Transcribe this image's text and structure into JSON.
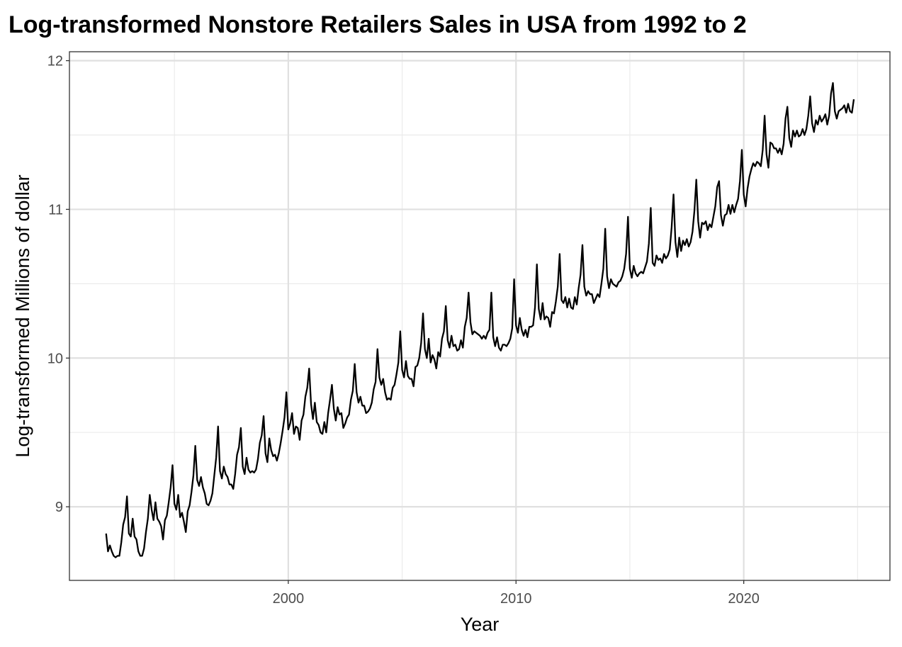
{
  "chart_data": {
    "type": "line",
    "title": "Log-transformed Nonstore Retailers Sales in USA from 1992 to 2",
    "xlabel": "Year",
    "ylabel": "Log-transformed Millions of dollar",
    "xlim": [
      1990.39,
      2026.42
    ],
    "ylim": [
      8.505,
      12.06
    ],
    "x_ticks": [
      2000,
      2010,
      2020
    ],
    "x_minor_ticks": [
      1995,
      2005,
      2015,
      2025
    ],
    "y_ticks": [
      9,
      10,
      11,
      12
    ],
    "y_minor_ticks": [
      9.5,
      10.5,
      11.5
    ],
    "x_tick_labels": [
      "2000",
      "2010",
      "2020"
    ],
    "y_tick_labels": [
      "9",
      "10",
      "11",
      "12"
    ],
    "grid": true,
    "legend": "none",
    "line_color": "#000000",
    "series": [
      {
        "frequency": "monthly",
        "x": [
          "1992-01",
          "1992-02",
          "1992-03",
          "1992-04",
          "1992-05",
          "1992-06",
          "1992-07",
          "1992-08",
          "1992-09",
          "1992-10",
          "1992-11",
          "1992-12",
          "1993-01",
          "1993-02",
          "1993-03",
          "1993-04",
          "1993-05",
          "1993-06",
          "1993-07",
          "1993-08",
          "1993-09",
          "1993-10",
          "1993-11",
          "1993-12",
          "1994-01",
          "1994-02",
          "1994-03",
          "1994-04",
          "1994-05",
          "1994-06",
          "1994-07",
          "1994-08",
          "1994-09",
          "1994-10",
          "1994-11",
          "1994-12",
          "1995-01",
          "1995-02",
          "1995-03",
          "1995-04",
          "1995-05",
          "1995-06",
          "1995-07",
          "1995-08",
          "1995-09",
          "1995-10",
          "1995-11",
          "1995-12",
          "1996-01",
          "1996-02",
          "1996-03",
          "1996-04",
          "1996-05",
          "1996-06",
          "1996-07",
          "1996-08",
          "1996-09",
          "1996-10",
          "1996-11",
          "1996-12",
          "1997-01",
          "1997-02",
          "1997-03",
          "1997-04",
          "1997-05",
          "1997-06",
          "1997-07",
          "1997-08",
          "1997-09",
          "1997-10",
          "1997-11",
          "1997-12",
          "1998-01",
          "1998-02",
          "1998-03",
          "1998-04",
          "1998-05",
          "1998-06",
          "1998-07",
          "1998-08",
          "1998-09",
          "1998-10",
          "1998-11",
          "1998-12",
          "1999-01",
          "1999-02",
          "1999-03",
          "1999-04",
          "1999-05",
          "1999-06",
          "1999-07",
          "1999-08",
          "1999-09",
          "1999-10",
          "1999-11",
          "1999-12",
          "2000-01",
          "2000-02",
          "2000-03",
          "2000-04",
          "2000-05",
          "2000-06",
          "2000-07",
          "2000-08",
          "2000-09",
          "2000-10",
          "2000-11",
          "2000-12",
          "2001-01",
          "2001-02",
          "2001-03",
          "2001-04",
          "2001-05",
          "2001-06",
          "2001-07",
          "2001-08",
          "2001-09",
          "2001-10",
          "2001-11",
          "2001-12",
          "2002-01",
          "2002-02",
          "2002-03",
          "2002-04",
          "2002-05",
          "2002-06",
          "2002-07",
          "2002-08",
          "2002-09",
          "2002-10",
          "2002-11",
          "2002-12",
          "2003-01",
          "2003-02",
          "2003-03",
          "2003-04",
          "2003-05",
          "2003-06",
          "2003-07",
          "2003-08",
          "2003-09",
          "2003-10",
          "2003-11",
          "2003-12",
          "2004-01",
          "2004-02",
          "2004-03",
          "2004-04",
          "2004-05",
          "2004-06",
          "2004-07",
          "2004-08",
          "2004-09",
          "2004-10",
          "2004-11",
          "2004-12",
          "2005-01",
          "2005-02",
          "2005-03",
          "2005-04",
          "2005-05",
          "2005-06",
          "2005-07",
          "2005-08",
          "2005-09",
          "2005-10",
          "2005-11",
          "2005-12",
          "2006-01",
          "2006-02",
          "2006-03",
          "2006-04",
          "2006-05",
          "2006-06",
          "2006-07",
          "2006-08",
          "2006-09",
          "2006-10",
          "2006-11",
          "2006-12",
          "2007-01",
          "2007-02",
          "2007-03",
          "2007-04",
          "2007-05",
          "2007-06",
          "2007-07",
          "2007-08",
          "2007-09",
          "2007-10",
          "2007-11",
          "2007-12",
          "2008-01",
          "2008-02",
          "2008-03",
          "2008-04",
          "2008-05",
          "2008-06",
          "2008-07",
          "2008-08",
          "2008-09",
          "2008-10",
          "2008-11",
          "2008-12",
          "2009-01",
          "2009-02",
          "2009-03",
          "2009-04",
          "2009-05",
          "2009-06",
          "2009-07",
          "2009-08",
          "2009-09",
          "2009-10",
          "2009-11",
          "2009-12",
          "2010-01",
          "2010-02",
          "2010-03",
          "2010-04",
          "2010-05",
          "2010-06",
          "2010-07",
          "2010-08",
          "2010-09",
          "2010-10",
          "2010-11",
          "2010-12",
          "2011-01",
          "2011-02",
          "2011-03",
          "2011-04",
          "2011-05",
          "2011-06",
          "2011-07",
          "2011-08",
          "2011-09",
          "2011-10",
          "2011-11",
          "2011-12",
          "2012-01",
          "2012-02",
          "2012-03",
          "2012-04",
          "2012-05",
          "2012-06",
          "2012-07",
          "2012-08",
          "2012-09",
          "2012-10",
          "2012-11",
          "2012-12",
          "2013-01",
          "2013-02",
          "2013-03",
          "2013-04",
          "2013-05",
          "2013-06",
          "2013-07",
          "2013-08",
          "2013-09",
          "2013-10",
          "2013-11",
          "2013-12",
          "2014-01",
          "2014-02",
          "2014-03",
          "2014-04",
          "2014-05",
          "2014-06",
          "2014-07",
          "2014-08",
          "2014-09",
          "2014-10",
          "2014-11",
          "2014-12",
          "2015-01",
          "2015-02",
          "2015-03",
          "2015-04",
          "2015-05",
          "2015-06",
          "2015-07",
          "2015-08",
          "2015-09",
          "2015-10",
          "2015-11",
          "2015-12",
          "2016-01",
          "2016-02",
          "2016-03",
          "2016-04",
          "2016-05",
          "2016-06",
          "2016-07",
          "2016-08",
          "2016-09",
          "2016-10",
          "2016-11",
          "2016-12",
          "2017-01",
          "2017-02",
          "2017-03",
          "2017-04",
          "2017-05",
          "2017-06",
          "2017-07",
          "2017-08",
          "2017-09",
          "2017-10",
          "2017-11",
          "2017-12",
          "2018-01",
          "2018-02",
          "2018-03",
          "2018-04",
          "2018-05",
          "2018-06",
          "2018-07",
          "2018-08",
          "2018-09",
          "2018-10",
          "2018-11",
          "2018-12",
          "2019-01",
          "2019-02",
          "2019-03",
          "2019-04",
          "2019-05",
          "2019-06",
          "2019-07",
          "2019-08",
          "2019-09",
          "2019-10",
          "2019-11",
          "2019-12",
          "2020-01",
          "2020-02",
          "2020-03",
          "2020-04",
          "2020-05",
          "2020-06",
          "2020-07",
          "2020-08",
          "2020-09",
          "2020-10",
          "2020-11",
          "2020-12",
          "2021-01",
          "2021-02",
          "2021-03",
          "2021-04",
          "2021-05",
          "2021-06",
          "2021-07",
          "2021-08",
          "2021-09",
          "2021-10",
          "2021-11",
          "2021-12",
          "2022-01",
          "2022-02",
          "2022-03",
          "2022-04",
          "2022-05",
          "2022-06",
          "2022-07",
          "2022-08",
          "2022-09",
          "2022-10",
          "2022-11",
          "2022-12",
          "2023-01",
          "2023-02",
          "2023-03",
          "2023-04",
          "2023-05",
          "2023-06",
          "2023-07",
          "2023-08",
          "2023-09",
          "2023-10",
          "2023-11",
          "2023-12",
          "2024-01",
          "2024-02",
          "2024-03",
          "2024-04",
          "2024-05",
          "2024-06",
          "2024-07",
          "2024-08",
          "2024-09",
          "2024-10",
          "2024-11"
        ],
        "values": [
          8.82,
          8.7,
          8.74,
          8.7,
          8.67,
          8.66,
          8.67,
          8.67,
          8.76,
          8.88,
          8.93,
          9.07,
          8.82,
          8.8,
          8.92,
          8.8,
          8.78,
          8.7,
          8.67,
          8.67,
          8.72,
          8.83,
          8.92,
          9.08,
          8.98,
          8.91,
          9.03,
          8.92,
          8.9,
          8.87,
          8.78,
          8.91,
          8.94,
          9.03,
          9.13,
          9.28,
          9.02,
          8.98,
          9.08,
          8.93,
          8.96,
          8.9,
          8.83,
          8.97,
          9.01,
          9.1,
          9.21,
          9.41,
          9.18,
          9.14,
          9.2,
          9.13,
          9.09,
          9.02,
          9.01,
          9.04,
          9.09,
          9.21,
          9.33,
          9.54,
          9.24,
          9.19,
          9.27,
          9.22,
          9.2,
          9.15,
          9.15,
          9.12,
          9.22,
          9.35,
          9.4,
          9.53,
          9.27,
          9.22,
          9.33,
          9.25,
          9.23,
          9.24,
          9.23,
          9.25,
          9.32,
          9.43,
          9.48,
          9.61,
          9.36,
          9.3,
          9.46,
          9.38,
          9.34,
          9.35,
          9.31,
          9.36,
          9.43,
          9.51,
          9.6,
          9.77,
          9.52,
          9.56,
          9.63,
          9.49,
          9.54,
          9.53,
          9.45,
          9.58,
          9.62,
          9.74,
          9.8,
          9.93,
          9.69,
          9.59,
          9.7,
          9.57,
          9.55,
          9.5,
          9.49,
          9.57,
          9.5,
          9.63,
          9.72,
          9.82,
          9.66,
          9.58,
          9.67,
          9.62,
          9.63,
          9.53,
          9.56,
          9.6,
          9.62,
          9.72,
          9.78,
          9.96,
          9.77,
          9.7,
          9.74,
          9.68,
          9.68,
          9.63,
          9.64,
          9.66,
          9.7,
          9.79,
          9.84,
          10.06,
          9.87,
          9.82,
          9.86,
          9.77,
          9.72,
          9.73,
          9.72,
          9.8,
          9.82,
          9.89,
          9.97,
          10.18,
          9.92,
          9.87,
          9.98,
          9.88,
          9.86,
          9.86,
          9.81,
          9.94,
          9.95,
          10.0,
          10.1,
          10.3,
          10.06,
          10.0,
          10.13,
          9.97,
          10.02,
          9.99,
          9.93,
          10.04,
          10.01,
          10.13,
          10.18,
          10.35,
          10.12,
          10.07,
          10.15,
          10.08,
          10.09,
          10.05,
          10.06,
          10.12,
          10.07,
          10.21,
          10.27,
          10.44,
          10.24,
          10.16,
          10.18,
          10.17,
          10.16,
          10.15,
          10.13,
          10.15,
          10.13,
          10.17,
          10.19,
          10.44,
          10.14,
          10.08,
          10.14,
          10.07,
          10.05,
          10.09,
          10.09,
          10.08,
          10.1,
          10.13,
          10.2,
          10.53,
          10.22,
          10.17,
          10.27,
          10.19,
          10.15,
          10.19,
          10.14,
          10.21,
          10.21,
          10.22,
          10.34,
          10.63,
          10.33,
          10.26,
          10.37,
          10.26,
          10.28,
          10.27,
          10.21,
          10.31,
          10.3,
          10.38,
          10.48,
          10.7,
          10.39,
          10.37,
          10.41,
          10.34,
          10.4,
          10.34,
          10.33,
          10.41,
          10.36,
          10.47,
          10.56,
          10.76,
          10.48,
          10.42,
          10.45,
          10.43,
          10.43,
          10.37,
          10.4,
          10.43,
          10.41,
          10.5,
          10.6,
          10.87,
          10.55,
          10.47,
          10.53,
          10.5,
          10.49,
          10.48,
          10.51,
          10.52,
          10.55,
          10.6,
          10.7,
          10.95,
          10.6,
          10.54,
          10.62,
          10.57,
          10.55,
          10.57,
          10.58,
          10.57,
          10.61,
          10.65,
          10.77,
          11.01,
          10.64,
          10.62,
          10.69,
          10.66,
          10.67,
          10.64,
          10.7,
          10.67,
          10.69,
          10.73,
          10.88,
          11.1,
          10.78,
          10.68,
          10.81,
          10.72,
          10.79,
          10.76,
          10.8,
          10.75,
          10.78,
          10.85,
          10.99,
          11.2,
          10.92,
          10.81,
          10.91,
          10.9,
          10.92,
          10.86,
          10.9,
          10.88,
          10.95,
          11.02,
          11.15,
          11.19,
          10.96,
          10.89,
          10.96,
          10.97,
          11.03,
          10.97,
          11.03,
          10.98,
          11.03,
          11.07,
          11.19,
          11.4,
          11.1,
          11.02,
          11.14,
          11.22,
          11.27,
          11.31,
          11.29,
          11.32,
          11.31,
          11.29,
          11.4,
          11.63,
          11.37,
          11.28,
          11.45,
          11.44,
          11.41,
          11.41,
          11.38,
          11.41,
          11.37,
          11.44,
          11.61,
          11.69,
          11.48,
          11.42,
          11.53,
          11.49,
          11.53,
          11.49,
          11.5,
          11.54,
          11.5,
          11.54,
          11.63,
          11.76,
          11.58,
          11.52,
          11.6,
          11.57,
          11.63,
          11.59,
          11.61,
          11.64,
          11.57,
          11.63,
          11.78,
          11.85,
          11.66,
          11.61,
          11.66,
          11.67,
          11.68,
          11.7,
          11.65,
          11.71,
          11.66,
          11.65,
          11.74
        ]
      }
    ]
  }
}
